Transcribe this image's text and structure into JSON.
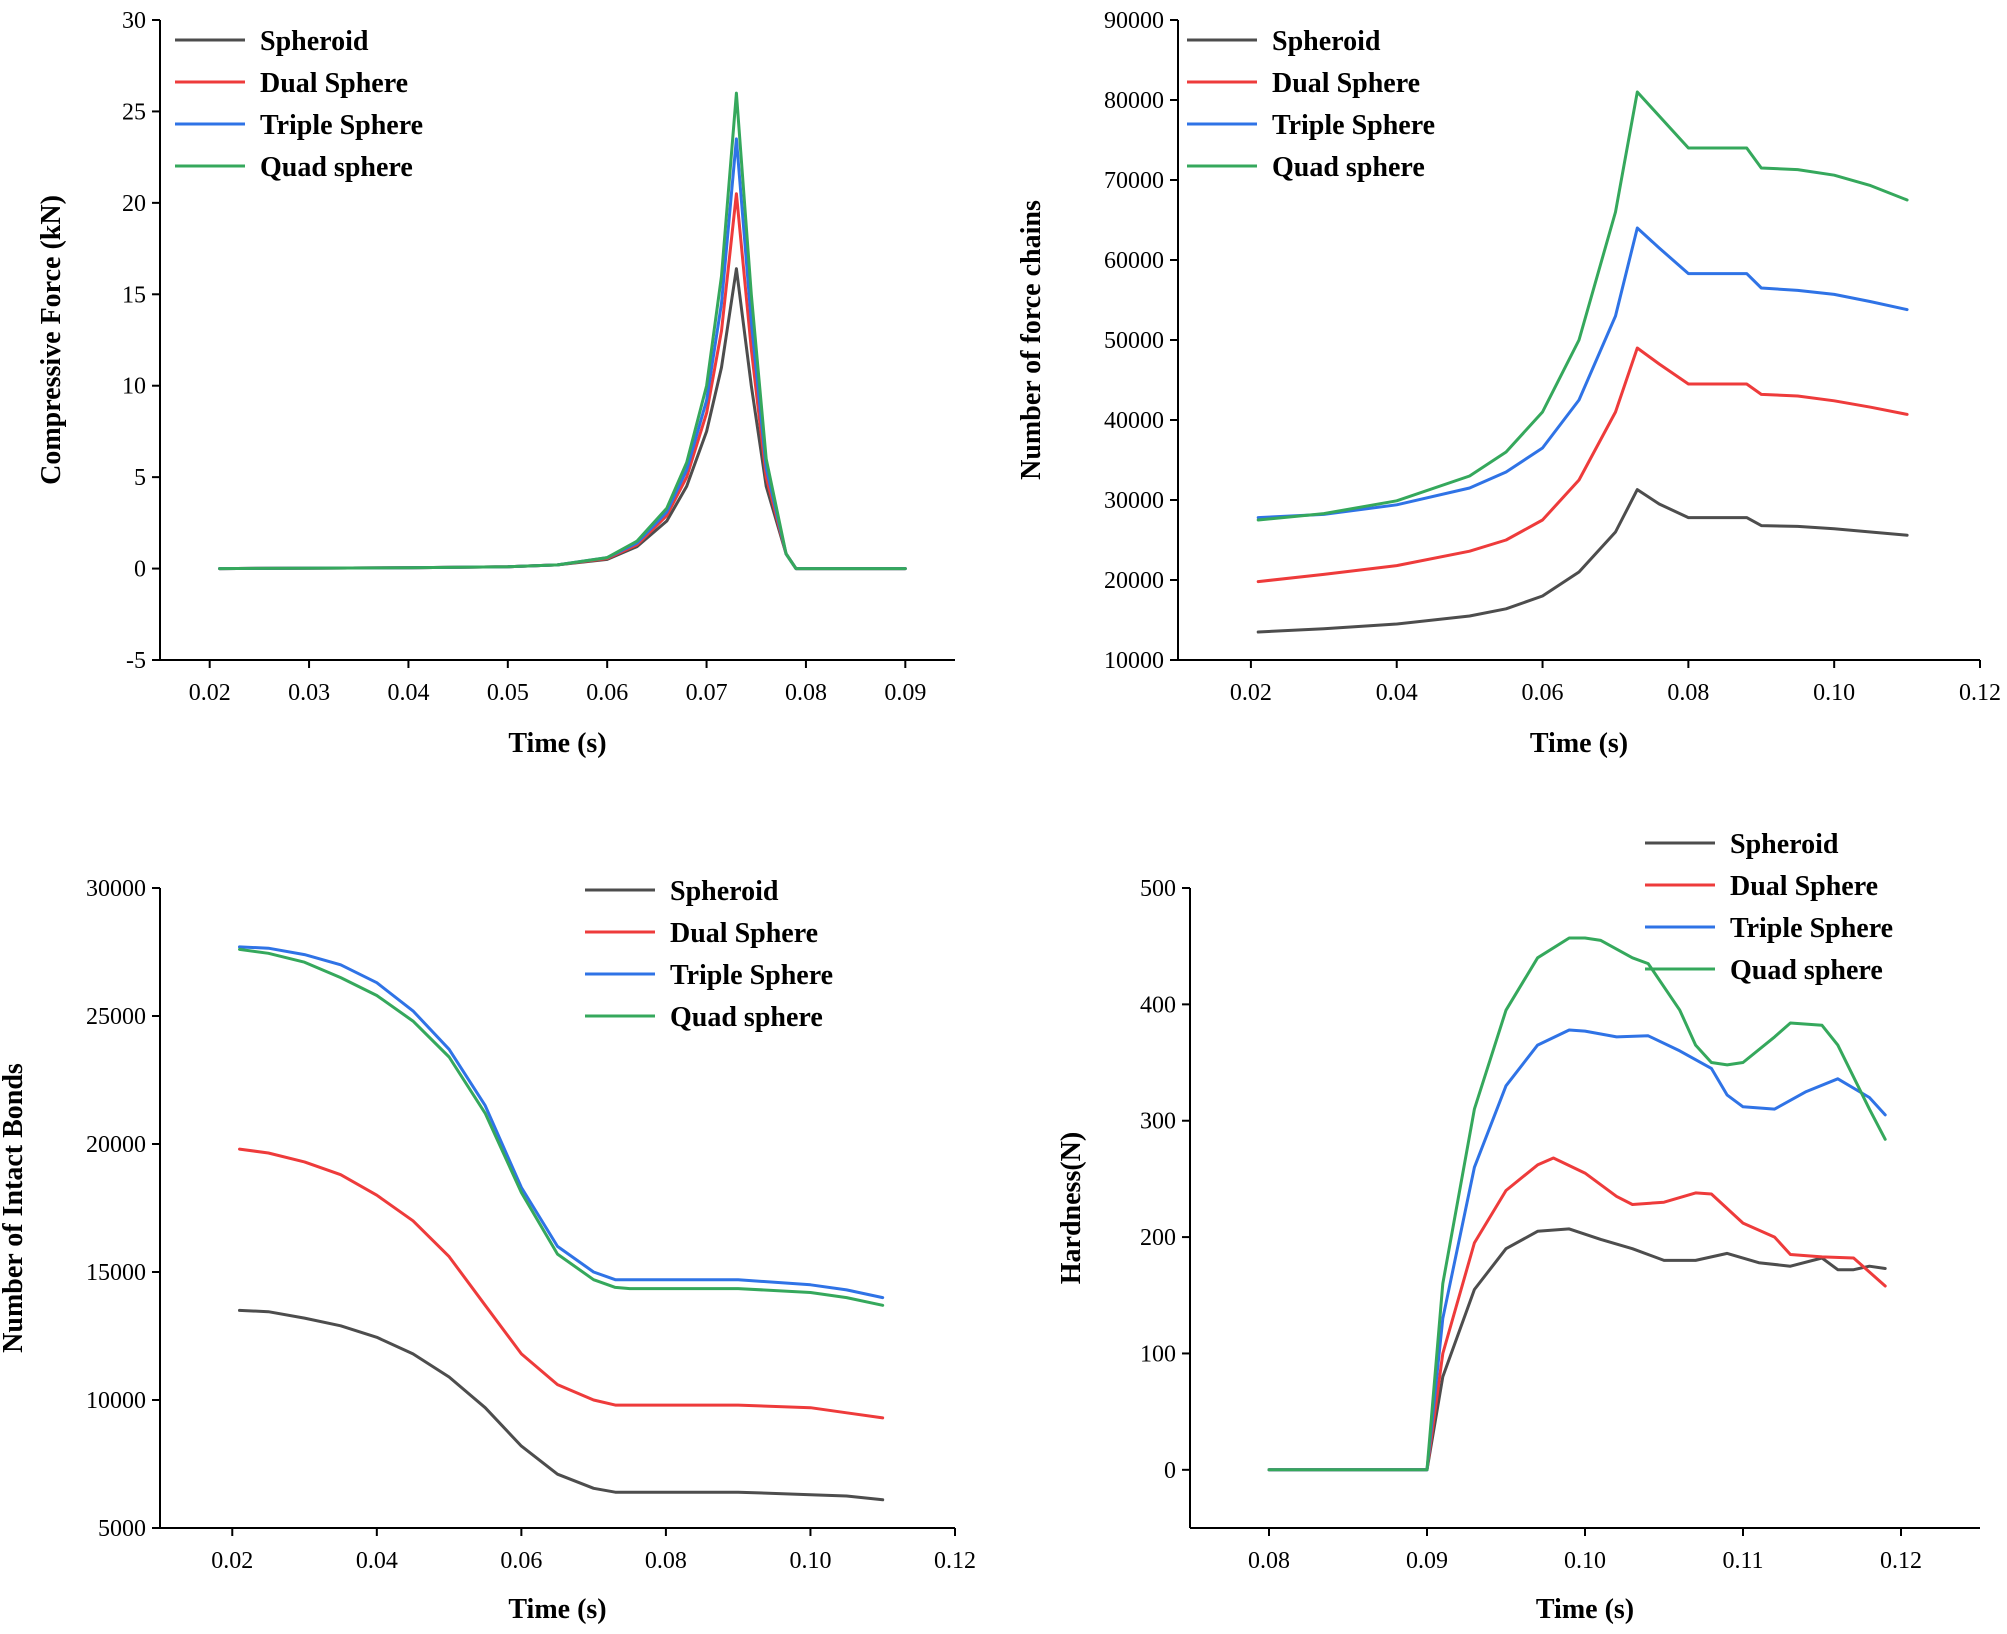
{
  "colors": {
    "Spheroid": "#4d4d4d",
    "Dual Sphere": "#ee3b3b",
    "Triple Sphere": "#2f73e6",
    "Quad sphere": "#35a85c"
  },
  "chart_data": [
    {
      "type": "line",
      "title": "",
      "xlabel": "Time (s)",
      "ylabel": "Compressive Force (kN)",
      "xlim": [
        0.015,
        0.095
      ],
      "ylim": [
        -5,
        30
      ],
      "xticks": [
        0.02,
        0.03,
        0.04,
        0.05,
        0.06,
        0.07,
        0.08,
        0.09
      ],
      "xtick_labels": [
        "0.02",
        "0.03",
        "0.04",
        "0.05",
        "0.06",
        "0.07",
        "0.08",
        "0.09"
      ],
      "yticks": [
        -5,
        0,
        5,
        10,
        15,
        20,
        25,
        30
      ],
      "ytick_labels": [
        "-5",
        "0",
        "5",
        "10",
        "15",
        "20",
        "25",
        "30"
      ],
      "legend": {
        "position": "top-left",
        "labels": [
          "Spheroid",
          "Dual Sphere",
          "Triple Sphere",
          "Quad sphere"
        ]
      },
      "series": [
        {
          "name": "Spheroid",
          "x": [
            0.021,
            0.04,
            0.05,
            0.055,
            0.06,
            0.063,
            0.066,
            0.068,
            0.07,
            0.0715,
            0.073,
            0.0745,
            0.076,
            0.078,
            0.079,
            0.085,
            0.09
          ],
          "y": [
            0,
            0.05,
            0.1,
            0.2,
            0.5,
            1.2,
            2.6,
            4.5,
            7.5,
            11,
            16.4,
            10,
            4.5,
            0.8,
            0,
            0,
            0
          ]
        },
        {
          "name": "Dual Sphere",
          "x": [
            0.021,
            0.04,
            0.05,
            0.055,
            0.06,
            0.063,
            0.066,
            0.068,
            0.07,
            0.0715,
            0.073,
            0.0745,
            0.076,
            0.078,
            0.079,
            0.085,
            0.09
          ],
          "y": [
            0,
            0.05,
            0.1,
            0.2,
            0.55,
            1.3,
            2.9,
            5.0,
            8.5,
            13,
            20.5,
            12,
            5,
            0.8,
            0,
            0,
            0
          ]
        },
        {
          "name": "Triple Sphere",
          "x": [
            0.021,
            0.04,
            0.05,
            0.055,
            0.06,
            0.063,
            0.066,
            0.068,
            0.07,
            0.0715,
            0.073,
            0.0745,
            0.076,
            0.078,
            0.079,
            0.085,
            0.09
          ],
          "y": [
            0,
            0.05,
            0.1,
            0.2,
            0.6,
            1.4,
            3.1,
            5.4,
            9.2,
            14.5,
            23.5,
            13.5,
            5.5,
            0.8,
            0,
            0,
            0
          ]
        },
        {
          "name": "Quad sphere",
          "x": [
            0.021,
            0.04,
            0.05,
            0.055,
            0.06,
            0.063,
            0.066,
            0.068,
            0.07,
            0.0715,
            0.073,
            0.0745,
            0.076,
            0.078,
            0.079,
            0.085,
            0.09
          ],
          "y": [
            0,
            0.05,
            0.1,
            0.2,
            0.6,
            1.5,
            3.3,
            5.8,
            10,
            16,
            26,
            15,
            6,
            0.8,
            0,
            0,
            0
          ]
        }
      ]
    },
    {
      "type": "line",
      "title": "",
      "xlabel": "Time (s)",
      "ylabel": "Number of force chains",
      "xlim": [
        0.01,
        0.12
      ],
      "ylim": [
        10000,
        90000
      ],
      "xticks": [
        0.02,
        0.04,
        0.06,
        0.08,
        0.1,
        0.12
      ],
      "xtick_labels": [
        "0.02",
        "0.04",
        "0.06",
        "0.08",
        "0.10",
        "0.12"
      ],
      "yticks": [
        10000,
        20000,
        30000,
        40000,
        50000,
        60000,
        70000,
        80000,
        90000
      ],
      "ytick_labels": [
        "10000",
        "20000",
        "30000",
        "40000",
        "50000",
        "60000",
        "70000",
        "80000",
        "90000"
      ],
      "legend": {
        "position": "top-left",
        "labels": [
          "Spheroid",
          "Dual Sphere",
          "Triple Sphere",
          "Quad sphere"
        ]
      },
      "series": [
        {
          "name": "Spheroid",
          "x": [
            0.021,
            0.03,
            0.04,
            0.05,
            0.055,
            0.06,
            0.065,
            0.07,
            0.073,
            0.076,
            0.08,
            0.085,
            0.088,
            0.09,
            0.095,
            0.1,
            0.105,
            0.11
          ],
          "y": [
            13500,
            13900,
            14500,
            15500,
            16400,
            18000,
            21000,
            26000,
            31300,
            29500,
            27800,
            27800,
            27800,
            26800,
            26700,
            26400,
            26000,
            25600
          ]
        },
        {
          "name": "Dual Sphere",
          "x": [
            0.021,
            0.03,
            0.04,
            0.05,
            0.055,
            0.06,
            0.065,
            0.07,
            0.073,
            0.076,
            0.08,
            0.085,
            0.088,
            0.09,
            0.095,
            0.1,
            0.105,
            0.11
          ],
          "y": [
            19800,
            20700,
            21800,
            23600,
            25000,
            27500,
            32500,
            41000,
            49000,
            47000,
            44500,
            44500,
            44500,
            43200,
            43000,
            42400,
            41600,
            40700
          ]
        },
        {
          "name": "Triple Sphere",
          "x": [
            0.021,
            0.03,
            0.04,
            0.05,
            0.055,
            0.06,
            0.065,
            0.07,
            0.073,
            0.076,
            0.08,
            0.085,
            0.088,
            0.09,
            0.095,
            0.1,
            0.105,
            0.11
          ],
          "y": [
            27800,
            28200,
            29400,
            31500,
            33500,
            36500,
            42500,
            53000,
            64000,
            61500,
            58300,
            58300,
            58300,
            56500,
            56200,
            55700,
            54800,
            53800
          ]
        },
        {
          "name": "Quad sphere",
          "x": [
            0.021,
            0.03,
            0.04,
            0.05,
            0.055,
            0.06,
            0.065,
            0.07,
            0.073,
            0.076,
            0.08,
            0.085,
            0.088,
            0.09,
            0.095,
            0.1,
            0.105,
            0.11
          ],
          "y": [
            27500,
            28300,
            29900,
            33000,
            36000,
            41000,
            50000,
            66000,
            81000,
            78000,
            74000,
            74000,
            74000,
            71500,
            71300,
            70600,
            69300,
            67500
          ]
        }
      ]
    },
    {
      "type": "line",
      "title": "",
      "xlabel": "Time (s)",
      "ylabel": "Number of Intact Bonds",
      "xlim": [
        0.01,
        0.12
      ],
      "ylim": [
        5000,
        30000
      ],
      "xticks": [
        0.02,
        0.04,
        0.06,
        0.08,
        0.1,
        0.12
      ],
      "xtick_labels": [
        "0.02",
        "0.04",
        "0.06",
        "0.08",
        "0.10",
        "0.12"
      ],
      "yticks": [
        5000,
        10000,
        15000,
        20000,
        25000,
        30000
      ],
      "ytick_labels": [
        "5000",
        "10000",
        "15000",
        "20000",
        "25000",
        "30000"
      ],
      "legend": {
        "position": "top-right",
        "labels": [
          "Spheroid",
          "Dual Sphere",
          "Triple Sphere",
          "Quad sphere"
        ]
      },
      "series": [
        {
          "name": "Spheroid",
          "x": [
            0.021,
            0.025,
            0.03,
            0.035,
            0.04,
            0.045,
            0.05,
            0.055,
            0.06,
            0.065,
            0.07,
            0.073,
            0.075,
            0.08,
            0.09,
            0.1,
            0.105,
            0.11
          ],
          "y": [
            13500,
            13450,
            13200,
            12900,
            12450,
            11800,
            10900,
            9700,
            8200,
            7100,
            6550,
            6400,
            6400,
            6400,
            6400,
            6300,
            6250,
            6100
          ]
        },
        {
          "name": "Dual Sphere",
          "x": [
            0.021,
            0.025,
            0.03,
            0.035,
            0.04,
            0.045,
            0.05,
            0.055,
            0.06,
            0.065,
            0.07,
            0.073,
            0.075,
            0.08,
            0.09,
            0.1,
            0.105,
            0.11
          ],
          "y": [
            19800,
            19650,
            19300,
            18800,
            18000,
            17000,
            15600,
            13700,
            11800,
            10600,
            10000,
            9800,
            9800,
            9800,
            9800,
            9700,
            9500,
            9300
          ]
        },
        {
          "name": "Triple Sphere",
          "x": [
            0.021,
            0.025,
            0.03,
            0.035,
            0.04,
            0.045,
            0.05,
            0.055,
            0.06,
            0.065,
            0.07,
            0.073,
            0.075,
            0.08,
            0.09,
            0.1,
            0.105,
            0.11
          ],
          "y": [
            27700,
            27650,
            27400,
            27000,
            26300,
            25200,
            23700,
            21500,
            18300,
            16000,
            15000,
            14700,
            14700,
            14700,
            14700,
            14500,
            14300,
            14000
          ]
        },
        {
          "name": "Quad sphere",
          "x": [
            0.021,
            0.025,
            0.03,
            0.035,
            0.04,
            0.045,
            0.05,
            0.055,
            0.06,
            0.065,
            0.07,
            0.073,
            0.075,
            0.08,
            0.09,
            0.1,
            0.105,
            0.11
          ],
          "y": [
            27600,
            27450,
            27100,
            26500,
            25800,
            24800,
            23400,
            21200,
            18100,
            15700,
            14700,
            14400,
            14350,
            14350,
            14350,
            14200,
            14000,
            13700
          ]
        }
      ]
    },
    {
      "type": "line",
      "title": "",
      "xlabel": "Time (s)",
      "ylabel": "Hardness(N)",
      "xlim": [
        0.075,
        0.125
      ],
      "ylim": [
        -50,
        500
      ],
      "xticks": [
        0.08,
        0.09,
        0.1,
        0.11,
        0.12
      ],
      "xtick_labels": [
        "0.08",
        "0.09",
        "0.10",
        "0.11",
        "0.12"
      ],
      "yticks": [
        0,
        100,
        200,
        300,
        400,
        500
      ],
      "ytick_labels": [
        "0",
        "100",
        "200",
        "300",
        "400",
        "500"
      ],
      "legend": {
        "position": "top-right",
        "labels": [
          "Spheroid",
          "Dual Sphere",
          "Triple Sphere",
          "Quad sphere"
        ]
      },
      "series": [
        {
          "name": "Spheroid",
          "x": [
            0.08,
            0.09,
            0.091,
            0.093,
            0.095,
            0.097,
            0.099,
            0.101,
            0.103,
            0.105,
            0.107,
            0.109,
            0.111,
            0.113,
            0.115,
            0.116,
            0.117,
            0.118,
            0.119
          ],
          "y": [
            0,
            0,
            80,
            155,
            190,
            205,
            207,
            198,
            190,
            180,
            180,
            186,
            178,
            175,
            182,
            172,
            172,
            175,
            173
          ]
        },
        {
          "name": "Dual Sphere",
          "x": [
            0.08,
            0.09,
            0.091,
            0.093,
            0.095,
            0.097,
            0.098,
            0.1,
            0.102,
            0.103,
            0.105,
            0.107,
            0.108,
            0.11,
            0.112,
            0.113,
            0.115,
            0.117,
            0.118,
            0.119
          ],
          "y": [
            0,
            0,
            100,
            195,
            240,
            262,
            268,
            255,
            235,
            228,
            230,
            238,
            237,
            212,
            200,
            185,
            183,
            182,
            170,
            158
          ]
        },
        {
          "name": "Triple Sphere",
          "x": [
            0.08,
            0.09,
            0.091,
            0.093,
            0.095,
            0.097,
            0.099,
            0.1,
            0.102,
            0.104,
            0.106,
            0.108,
            0.109,
            0.11,
            0.112,
            0.114,
            0.116,
            0.118,
            0.119
          ],
          "y": [
            0,
            0,
            130,
            260,
            330,
            365,
            378,
            377,
            372,
            373,
            360,
            345,
            322,
            312,
            310,
            325,
            336,
            320,
            305
          ]
        },
        {
          "name": "Quad sphere",
          "x": [
            0.08,
            0.09,
            0.091,
            0.093,
            0.095,
            0.097,
            0.099,
            0.1,
            0.101,
            0.103,
            0.104,
            0.106,
            0.107,
            0.108,
            0.109,
            0.11,
            0.112,
            0.113,
            0.115,
            0.116,
            0.118,
            0.119
          ],
          "y": [
            0,
            0,
            160,
            310,
            395,
            440,
            457,
            457,
            455,
            440,
            435,
            395,
            365,
            350,
            348,
            350,
            372,
            384,
            382,
            365,
            310,
            284
          ]
        }
      ]
    }
  ]
}
